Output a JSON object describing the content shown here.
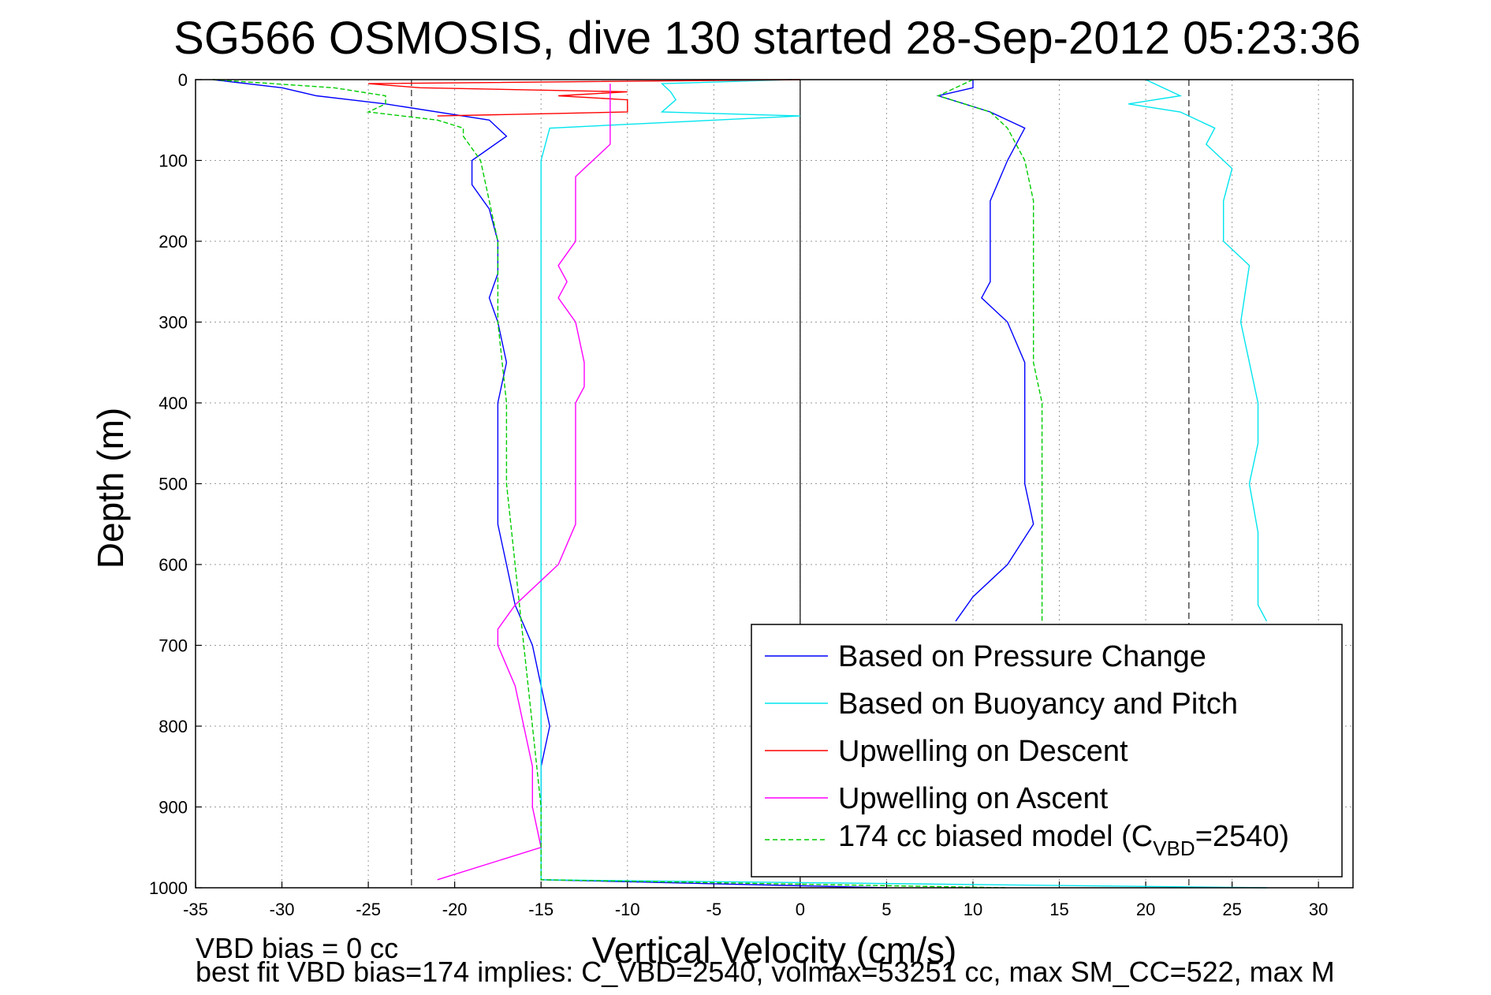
{
  "chart_data": {
    "type": "line",
    "title": "SG566 OSMOSIS, dive 130 started 28-Sep-2012 05:23:36",
    "xlabel": "Vertical Velocity (cm/s)",
    "ylabel": "Depth (m)",
    "xlim": [
      -35,
      32
    ],
    "ylim": [
      0,
      1000
    ],
    "y_reversed": true,
    "x_ticks": [
      -35,
      -30,
      -25,
      -20,
      -15,
      -10,
      -5,
      0,
      5,
      10,
      15,
      20,
      25,
      30
    ],
    "y_ticks": [
      0,
      100,
      200,
      300,
      400,
      500,
      600,
      700,
      800,
      900,
      1000
    ],
    "grid": true,
    "legend_position": "bottom-right",
    "reference_lines": {
      "dashed_x": [
        -22.5,
        22.5
      ],
      "solid_x": [
        0
      ]
    },
    "footnotes": [
      "VBD bias = 0 cc",
      "best fit VBD bias=174 implies: C_VBD=2540, volmax=53251 cc, max SM_CC=522, max M"
    ],
    "legend": {
      "pressure": "Based on Pressure Change",
      "buoyancy": "Based on Buoyancy and Pitch",
      "up_descent": "Upwelling on Descent",
      "up_ascent": "Upwelling on Ascent",
      "model_pre": "174 cc biased model (C",
      "model_sub": "VBD",
      "model_post": "=2540)"
    },
    "series": [
      {
        "key": "pressure_descent",
        "color": "#0000ff",
        "depth": [
          0,
          10,
          20,
          30,
          50,
          70,
          100,
          130,
          160,
          200,
          240,
          270,
          300,
          350,
          400,
          450,
          500,
          550,
          600,
          650,
          700,
          750,
          800,
          850,
          900,
          950,
          990,
          1000
        ],
        "velocity": [
          -34,
          -30,
          -28,
          -24,
          -18,
          -17,
          -19,
          -19,
          -18,
          -17.5,
          -17.5,
          -18,
          -17.5,
          -17,
          -17.5,
          -17.5,
          -17.5,
          -17.5,
          -17,
          -16.5,
          -15.5,
          -15,
          -14.5,
          -15,
          -15,
          -15,
          -15,
          5
        ]
      },
      {
        "key": "pressure_ascent",
        "color": "#0000ff",
        "depth": [
          0,
          10,
          20,
          40,
          60,
          100,
          150,
          200,
          250,
          270,
          300,
          350,
          400,
          450,
          500,
          550,
          600,
          640,
          670
        ],
        "velocity": [
          10,
          10,
          8,
          11,
          13,
          12,
          11,
          11,
          11,
          10.5,
          12,
          13,
          13,
          13,
          13,
          13.5,
          12,
          10,
          9
        ]
      },
      {
        "key": "buoyancy_descent",
        "color": "#00e5ee",
        "depth": [
          0,
          5,
          15,
          25,
          40,
          45,
          60,
          100,
          200,
          300,
          400,
          500,
          600,
          700,
          800,
          900,
          990,
          1000
        ],
        "velocity": [
          -0.5,
          -8,
          -7.5,
          -7.2,
          -8,
          0,
          -14.5,
          -15,
          -15,
          -15,
          -15,
          -15,
          -15,
          -15,
          -15,
          -15,
          -15,
          27
        ]
      },
      {
        "key": "buoyancy_ascent",
        "color": "#00e5ee",
        "depth": [
          0,
          10,
          20,
          30,
          40,
          60,
          80,
          110,
          150,
          200,
          230,
          300,
          400,
          450,
          500,
          560,
          600,
          650,
          670
        ],
        "velocity": [
          20,
          21,
          22,
          19,
          22,
          24,
          23.5,
          25,
          24.5,
          24.5,
          26,
          25.5,
          26.5,
          26.5,
          26,
          26.5,
          26.5,
          26.5,
          27
        ]
      },
      {
        "key": "up_descent",
        "color": "#ff0000",
        "depth": [
          0,
          5,
          10,
          15,
          20,
          25,
          30,
          40,
          45
        ],
        "velocity": [
          0,
          -25,
          -22,
          -10,
          -14,
          -10,
          -10,
          -10,
          -21
        ]
      },
      {
        "key": "up_ascent",
        "color": "#ff00ff",
        "depth": [
          5,
          20,
          50,
          80,
          100,
          120,
          150,
          200,
          230,
          250,
          270,
          300,
          350,
          380,
          400,
          450,
          500,
          550,
          600,
          650,
          680,
          700,
          750,
          800,
          850,
          900,
          950,
          990
        ],
        "velocity": [
          -11,
          -11,
          -11,
          -11,
          -12,
          -13,
          -13,
          -13,
          -14,
          -13.5,
          -14,
          -13,
          -12.5,
          -12.5,
          -13,
          -13,
          -13,
          -13,
          -14,
          -16.5,
          -17.5,
          -17.5,
          -16.5,
          -16,
          -15.5,
          -15.5,
          -15,
          -21
        ]
      },
      {
        "key": "model_descent",
        "color": "#00cc00",
        "depth": [
          0,
          10,
          20,
          30,
          40,
          50,
          60,
          70,
          100,
          150,
          200,
          300,
          400,
          500,
          600,
          700,
          800,
          900,
          990,
          1000
        ],
        "velocity": [
          -34,
          -27,
          -24,
          -24,
          -25,
          -21,
          -19.5,
          -19.5,
          -18.5,
          -18,
          -17.5,
          -17.5,
          -17,
          -17,
          -16.5,
          -16,
          -15.5,
          -15,
          -15,
          12
        ]
      },
      {
        "key": "model_ascent",
        "color": "#00cc00",
        "depth": [
          0,
          20,
          40,
          60,
          80,
          100,
          150,
          200,
          250,
          300,
          350,
          400,
          450,
          500,
          550,
          600,
          650,
          670
        ],
        "velocity": [
          10,
          8,
          11,
          12,
          12.5,
          13,
          13.5,
          13.5,
          13.5,
          13.5,
          13.5,
          14,
          14,
          14,
          14,
          14,
          14,
          14
        ]
      }
    ]
  }
}
